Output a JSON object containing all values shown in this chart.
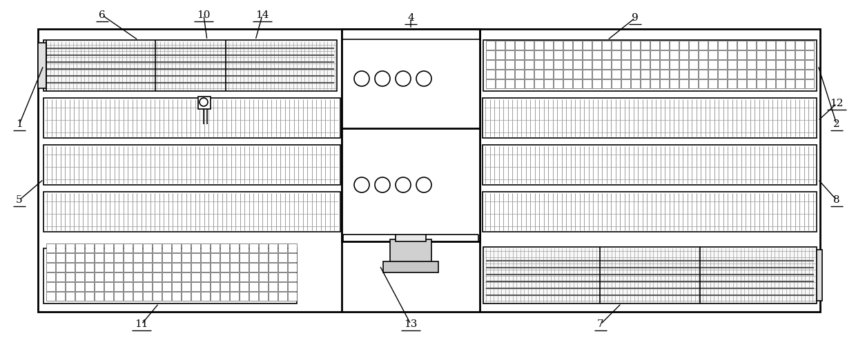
{
  "bg_color": "#ffffff",
  "line_color": "#000000",
  "fig_width": 12.4,
  "fig_height": 4.9,
  "dpi": 100
}
